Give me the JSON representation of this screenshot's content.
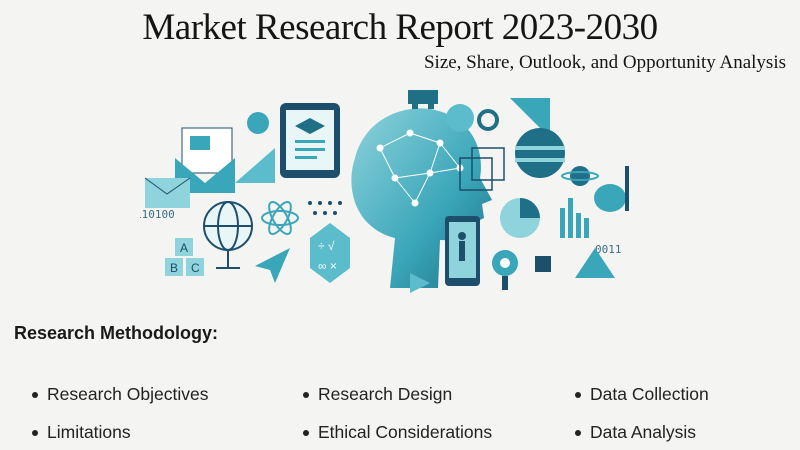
{
  "header": {
    "title": "Market Research Report 2023-2030",
    "subtitle": "Size, Share, Outlook, and Opportunity Analysis"
  },
  "illustration": {
    "icon": "ai-head-technology-collage",
    "colors": {
      "teal": "#3aa6b9",
      "dark_teal": "#1f6f86",
      "light_teal": "#8fd3dc",
      "navy": "#1d4e6b"
    }
  },
  "methodology": {
    "heading": "Research Methodology:",
    "items": [
      {
        "label": "Research Objectives"
      },
      {
        "label": "Research Design"
      },
      {
        "label": "Data Collection"
      },
      {
        "label": "Limitations"
      },
      {
        "label": "Ethical Considerations"
      },
      {
        "label": "Data Analysis"
      }
    ]
  }
}
